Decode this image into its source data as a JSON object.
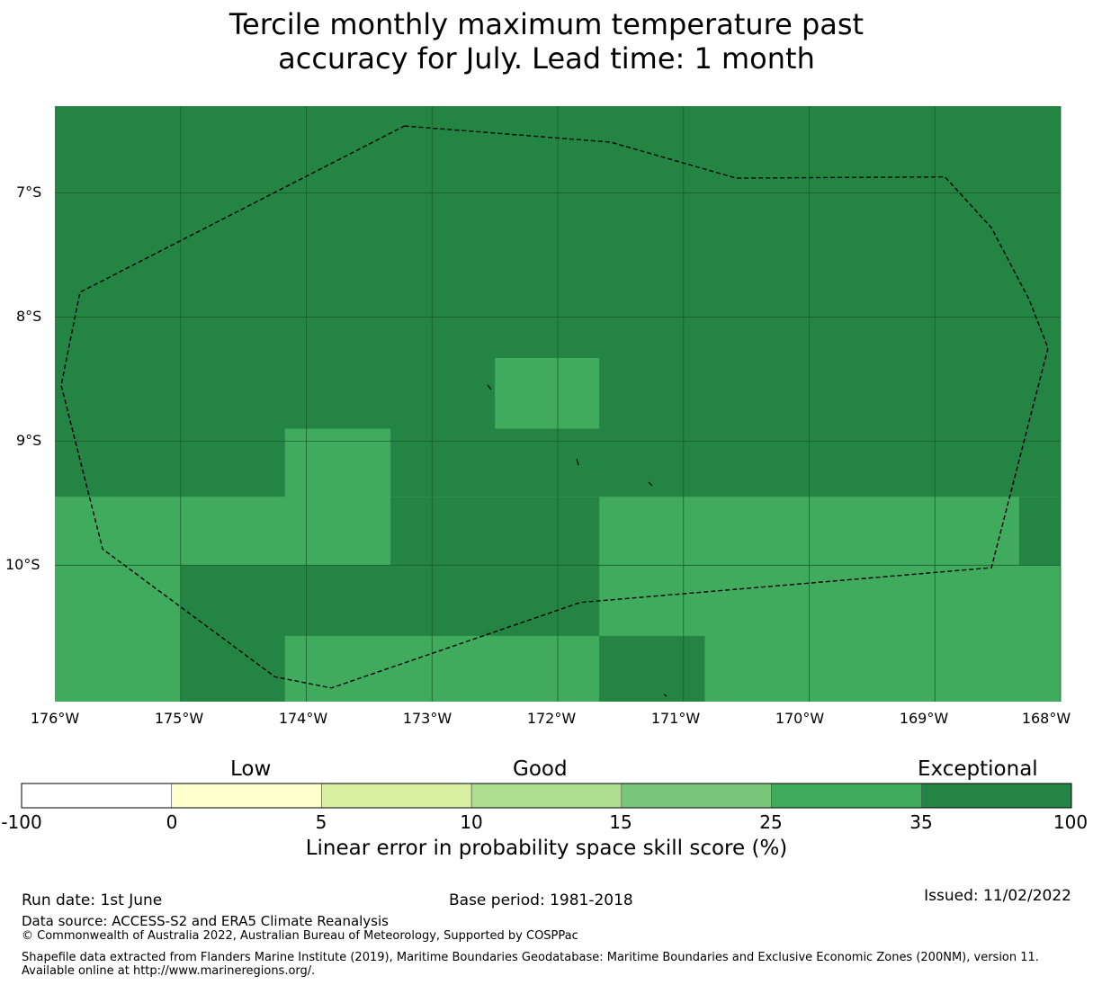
{
  "title": {
    "line1": "Tercile monthly maximum temperature past",
    "line2": "accuracy for July. Lead time: 1 month"
  },
  "map": {
    "lat_labels": [
      "7°S",
      "8°S",
      "9°S",
      "10°S"
    ],
    "lon_labels": [
      "176°W",
      "175°W",
      "174°W",
      "173°W",
      "172°W",
      "171°W",
      "170°W",
      "169°W",
      "168°W"
    ],
    "lon_range": [
      -176,
      -168
    ],
    "lat_range": [
      -6.3,
      -11.1
    ],
    "colors": {
      "exceptional": "#238443",
      "very_good": "#41ab5d",
      "gridline": "#1a5c2c",
      "boundary": "#000000"
    },
    "cells": [
      {
        "lon": [
          -176,
          -168
        ],
        "lat": [
          -6.3,
          -9.45
        ],
        "cls": "exceptional"
      },
      {
        "lon": [
          -176,
          -168
        ],
        "lat": [
          -9.45,
          -11.1
        ],
        "cls": "very_good"
      },
      {
        "lon": [
          -172.5,
          -171.67
        ],
        "lat": [
          -8.33,
          -8.9
        ],
        "cls": "very_good"
      },
      {
        "lon": [
          -174.17,
          -173.33
        ],
        "lat": [
          -8.9,
          -9.45
        ],
        "cls": "very_good"
      },
      {
        "lon": [
          -173.33,
          -171.67
        ],
        "lat": [
          -9.45,
          -10.0
        ],
        "cls": "exceptional"
      },
      {
        "lon": [
          -168.33,
          -168
        ],
        "lat": [
          -9.45,
          -10.0
        ],
        "cls": "exceptional"
      },
      {
        "lon": [
          -175,
          -171.67
        ],
        "lat": [
          -10.0,
          -10.57
        ],
        "cls": "exceptional"
      },
      {
        "lon": [
          -175,
          -174.17
        ],
        "lat": [
          -10.57,
          -11.1
        ],
        "cls": "exceptional"
      },
      {
        "lon": [
          -171.67,
          -170.83
        ],
        "lat": [
          -10.57,
          -11.1
        ],
        "cls": "exceptional"
      }
    ],
    "eez_boundary": [
      [
        -173.22,
        -6.46
      ],
      [
        -171.58,
        -6.59
      ],
      [
        -170.58,
        -6.88
      ],
      [
        -168.92,
        -6.87
      ],
      [
        -168.55,
        -7.28
      ],
      [
        -168.25,
        -7.86
      ],
      [
        -168.1,
        -8.25
      ],
      [
        -168.55,
        -10.02
      ],
      [
        -171.82,
        -10.3
      ],
      [
        -173.8,
        -10.99
      ],
      [
        -174.25,
        -10.9
      ],
      [
        -175.62,
        -9.87
      ],
      [
        -175.95,
        -8.55
      ],
      [
        -175.8,
        -7.8
      ],
      [
        -173.22,
        -6.46
      ]
    ]
  },
  "colorbar": {
    "categories": [
      "Low",
      "Good",
      "Exceptional"
    ],
    "ticks": [
      "-100",
      "0",
      "5",
      "10",
      "15",
      "25",
      "35",
      "100"
    ],
    "colors": [
      "#ffffff",
      "#ffffcc",
      "#d9f0a3",
      "#addd8e",
      "#78c679",
      "#41ab5d",
      "#238443"
    ],
    "label": "Linear error in probability space skill score (%)"
  },
  "footer": {
    "run_date": "Run date: 1st June",
    "base_period": "Base period: 1981-2018",
    "issued": "Issued: 11/02/2022",
    "data_source": "Data source: ACCESS-S2 and ERA5 Climate Reanalysis",
    "copyright": "© Commonwealth of Australia 2022, Australian Bureau of Meteorology, Supported by COSPPac",
    "shapefile": "Shapefile data extracted from Flanders Marine Institute (2019), Maritime Boundaries Geodatabase: Maritime Boundaries and Exclusive Economic Zones (200NM), version 11. Available online at http://www.marineregions.org/."
  }
}
